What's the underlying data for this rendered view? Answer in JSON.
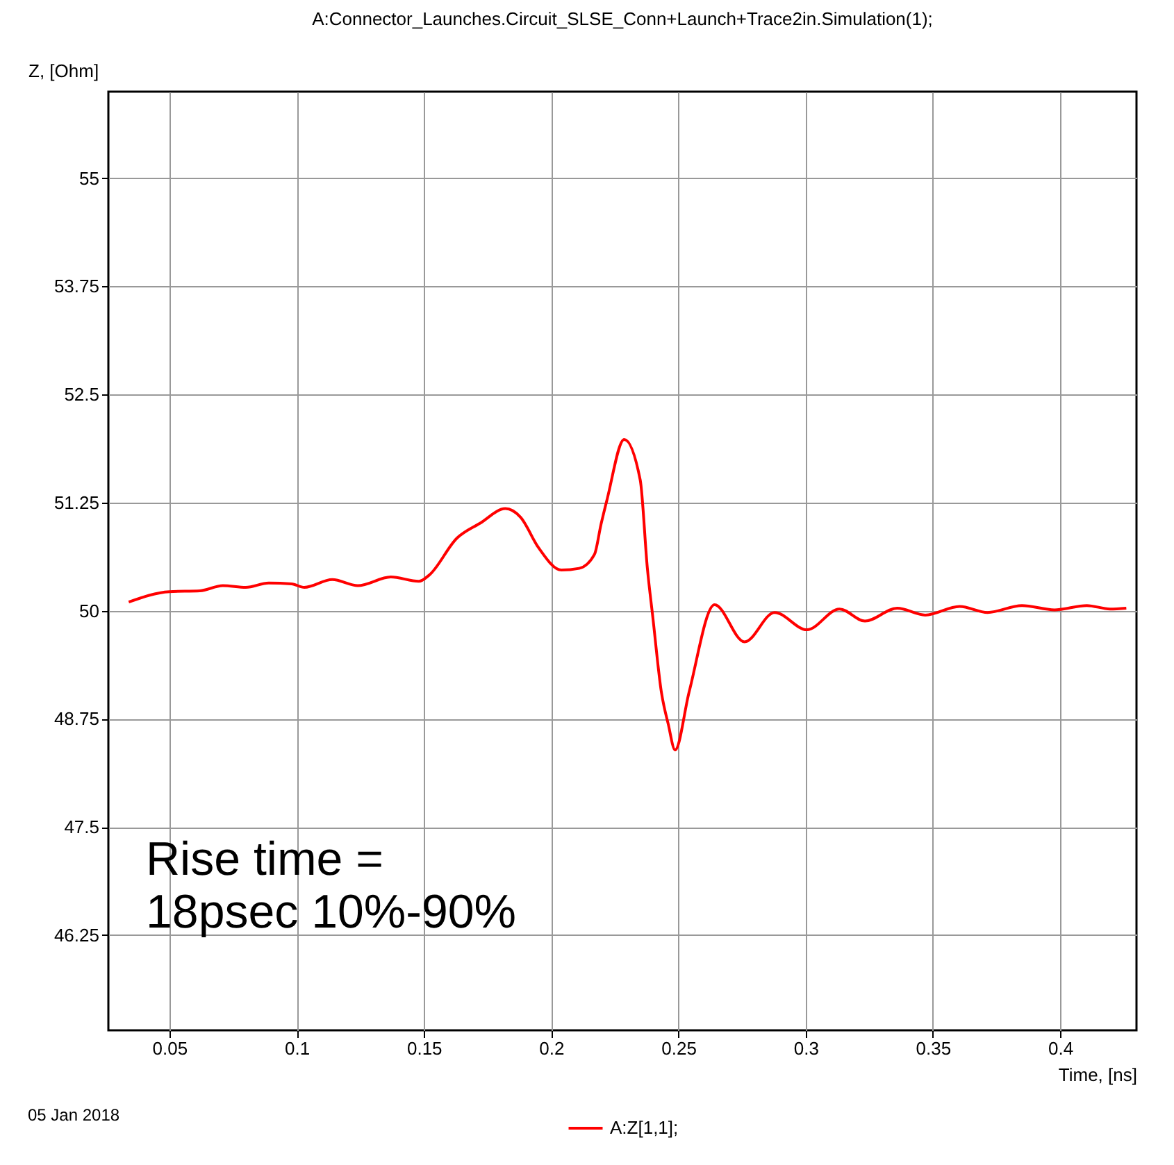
{
  "chart_data": {
    "type": "line",
    "title": "A:Connector_Launches.Circuit_SLSE_Conn+Launch+Trace2in.Simulation(1);",
    "xlabel": "Time, [ns]",
    "ylabel": "Z, [Ohm]",
    "annotations": [
      "Rise time = 18psec 10%-90%",
      "05 Jan 2018"
    ],
    "xlim": [
      0.026,
      0.43
    ],
    "ylim": [
      45.15,
      56.0
    ],
    "xticks": [
      0.05,
      0.1,
      0.15,
      0.2,
      0.25,
      0.3,
      0.35,
      0.4
    ],
    "yticks": [
      46.25,
      47.5,
      48.75,
      50,
      51.25,
      52.5,
      53.75,
      55
    ],
    "grid": true,
    "legend": "bottom",
    "line_style": "solid",
    "marker": "none",
    "series": [
      {
        "name": "A:Z[1,1];",
        "color": "#ff0000",
        "x": [
          0.034,
          0.05,
          0.062,
          0.071,
          0.08,
          0.089,
          0.098,
          0.103,
          0.114,
          0.124,
          0.137,
          0.148,
          0.152,
          0.163,
          0.172,
          0.182,
          0.188,
          0.195,
          0.204,
          0.211,
          0.217,
          0.2196,
          0.222,
          0.2287,
          0.235,
          0.2378,
          0.24,
          0.2433,
          0.246,
          0.2487,
          0.2542,
          0.2642,
          0.276,
          0.2878,
          0.3005,
          0.3133,
          0.3233,
          0.336,
          0.347,
          0.3605,
          0.3715,
          0.385,
          0.3978,
          0.4105,
          0.4196,
          0.426
        ],
        "values": [
          50.1,
          50.22,
          50.23,
          50.29,
          50.27,
          50.32,
          50.31,
          50.27,
          50.36,
          50.29,
          50.39,
          50.34,
          50.41,
          50.84,
          51.01,
          51.18,
          51.08,
          50.73,
          50.47,
          50.49,
          50.65,
          51.0,
          51.29,
          51.98,
          51.51,
          50.49,
          49.91,
          49.06,
          48.69,
          48.39,
          49.06,
          50.07,
          49.64,
          49.98,
          49.78,
          50.02,
          49.88,
          50.03,
          49.95,
          50.05,
          49.98,
          50.06,
          50.01,
          50.06,
          50.02,
          50.03
        ]
      }
    ]
  }
}
